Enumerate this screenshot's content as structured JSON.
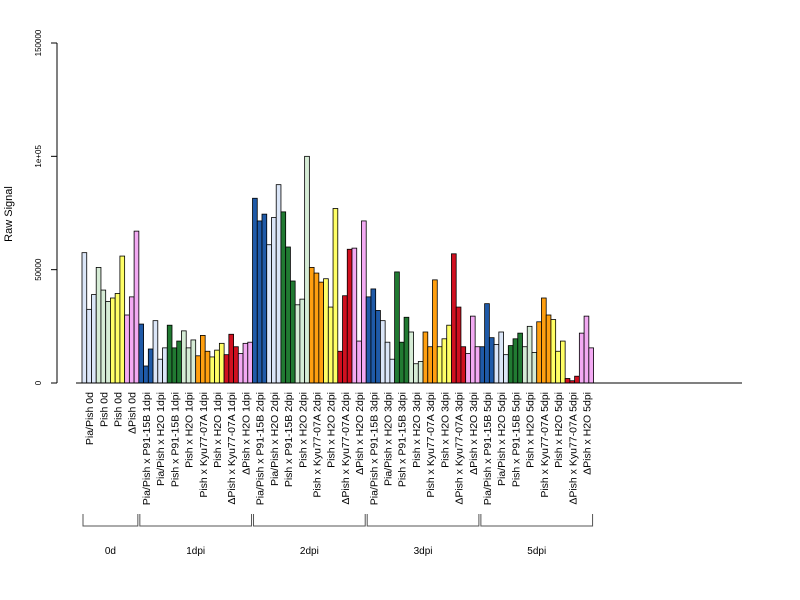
{
  "chart_data": {
    "type": "bar",
    "ylabel": "Raw Signal",
    "ylim": [
      0,
      150000
    ],
    "yticks": [
      0,
      50000,
      100000,
      150000
    ],
    "ytick_labels": [
      "0",
      "50000",
      "1e+05",
      "150000"
    ],
    "groups": [
      {
        "label": "Pia/Pish 0d",
        "values": [
          57500,
          32500,
          39000
        ],
        "colors": [
          "#dbe6f8",
          "#dbe6f8",
          "#dbe6f8"
        ]
      },
      {
        "label": "Pish 0d",
        "values": [
          51000,
          41000,
          36000
        ],
        "colors": [
          "#d6ecd6",
          "#d6ecd6",
          "#d6ecd6"
        ]
      },
      {
        "label": "Pish 0d",
        "values": [
          37500,
          39500,
          56000
        ],
        "colors": [
          "#ffff66",
          "#ffff66",
          "#ffff66"
        ]
      },
      {
        "label": "ΔPish 0d",
        "values": [
          30000,
          38000,
          67000
        ],
        "colors": [
          "#f3aaf3",
          "#f3aaf3",
          "#f3aaf3"
        ]
      },
      {
        "label": "Pia/Pish x P91-15B 1dpi",
        "values": [
          26000,
          7500,
          15000
        ],
        "colors": [
          "#1f5aa8",
          "#1f5aa8",
          "#1f5aa8"
        ]
      },
      {
        "label": "Pia/Pish x H2O 1dpi",
        "values": [
          27500,
          10500,
          15500
        ],
        "colors": [
          "#dbe6f8",
          "#dbe6f8",
          "#dbe6f8"
        ]
      },
      {
        "label": "Pish x P91-15B 1dpi",
        "values": [
          25500,
          15500,
          18500
        ],
        "colors": [
          "#217a32",
          "#217a32",
          "#217a32"
        ]
      },
      {
        "label": "Pish x H2O 1dpi",
        "values": [
          23000,
          15500,
          19000
        ],
        "colors": [
          "#d6ecd6",
          "#d6ecd6",
          "#d6ecd6"
        ]
      },
      {
        "label": "Pish x Kyu77-07A 1dpi",
        "values": [
          12000,
          21000,
          14000
        ],
        "colors": [
          "#ff9f10",
          "#ff9f10",
          "#ff9f10"
        ]
      },
      {
        "label": "Pish x H2O 1dpi",
        "values": [
          11500,
          14500,
          17500
        ],
        "colors": [
          "#ffff66",
          "#ffff66",
          "#ffff66"
        ]
      },
      {
        "label": "ΔPish x Kyu77-07A 1dpi",
        "values": [
          12500,
          21500,
          16000
        ],
        "colors": [
          "#d01020",
          "#d01020",
          "#d01020"
        ]
      },
      {
        "label": "ΔPish x H2O 1dpi",
        "values": [
          13000,
          17500,
          18000
        ],
        "colors": [
          "#f3aaf3",
          "#f3aaf3",
          "#f3aaf3"
        ]
      },
      {
        "label": "Pia/Pish x P91-15B 2dpi",
        "values": [
          81500,
          71500,
          74500
        ],
        "colors": [
          "#1f5aa8",
          "#1f5aa8",
          "#1f5aa8"
        ]
      },
      {
        "label": "Pia/Pish x H2O 2dpi",
        "values": [
          61000,
          73000,
          87500
        ],
        "colors": [
          "#dbe6f8",
          "#dbe6f8",
          "#dbe6f8"
        ]
      },
      {
        "label": "Pish x P91-15B 2dpi",
        "values": [
          75500,
          60000,
          45000
        ],
        "colors": [
          "#217a32",
          "#217a32",
          "#217a32"
        ]
      },
      {
        "label": "Pish x H2O 2dpi",
        "values": [
          34500,
          37000,
          100000
        ],
        "colors": [
          "#d6ecd6",
          "#d6ecd6",
          "#d6ecd6"
        ]
      },
      {
        "label": "Pish x Kyu77-07A 2dpi",
        "values": [
          51000,
          48500,
          44500
        ],
        "colors": [
          "#ff9f10",
          "#ff9f10",
          "#ff9f10"
        ]
      },
      {
        "label": "Pish x H2O 2dpi",
        "values": [
          46000,
          33500,
          77000
        ],
        "colors": [
          "#ffff66",
          "#ffff66",
          "#ffff66"
        ]
      },
      {
        "label": "ΔPish x Kyu77-07A 2dpi",
        "values": [
          14000,
          38500,
          59000
        ],
        "colors": [
          "#d01020",
          "#d01020",
          "#d01020"
        ]
      },
      {
        "label": "ΔPish x H2O 2dpi",
        "values": [
          59500,
          18500,
          71500
        ],
        "colors": [
          "#f3aaf3",
          "#f3aaf3",
          "#f3aaf3"
        ]
      },
      {
        "label": "Pia/Pish x P91-15B 3dpi",
        "values": [
          38000,
          41500,
          32000
        ],
        "colors": [
          "#1f5aa8",
          "#1f5aa8",
          "#1f5aa8"
        ]
      },
      {
        "label": "Pia/Pish x H2O 3dpi",
        "values": [
          27500,
          18000,
          10500
        ],
        "colors": [
          "#dbe6f8",
          "#dbe6f8",
          "#dbe6f8"
        ]
      },
      {
        "label": "Pish x P91-15B 3dpi",
        "values": [
          49000,
          18000,
          29000
        ],
        "colors": [
          "#217a32",
          "#217a32",
          "#217a32"
        ]
      },
      {
        "label": "Pish x H2O 3dpi",
        "values": [
          22500,
          8500,
          9500
        ],
        "colors": [
          "#d6ecd6",
          "#d6ecd6",
          "#d6ecd6"
        ]
      },
      {
        "label": "Pish x Kyu77-07A 3dpi",
        "values": [
          22500,
          16000,
          45500
        ],
        "colors": [
          "#ff9f10",
          "#ff9f10",
          "#ff9f10"
        ]
      },
      {
        "label": "Pish x H2O 3dpi",
        "values": [
          16000,
          19500,
          25500
        ],
        "colors": [
          "#ffff66",
          "#ffff66",
          "#ffff66"
        ]
      },
      {
        "label": "ΔPish x Kyu77-07A 3dpi",
        "values": [
          57000,
          33500,
          16000
        ],
        "colors": [
          "#d01020",
          "#d01020",
          "#d01020"
        ]
      },
      {
        "label": "ΔPish x H2O 3dpi",
        "values": [
          13000,
          29500,
          16000
        ],
        "colors": [
          "#f3aaf3",
          "#f3aaf3",
          "#f3aaf3"
        ]
      },
      {
        "label": "Pia/Pish x P91-15B 5dpi",
        "values": [
          16000,
          35000,
          20000
        ],
        "colors": [
          "#1f5aa8",
          "#1f5aa8",
          "#1f5aa8"
        ]
      },
      {
        "label": "Pia/Pish x H2O 5dpi",
        "values": [
          17000,
          22500,
          12500
        ],
        "colors": [
          "#dbe6f8",
          "#dbe6f8",
          "#dbe6f8"
        ]
      },
      {
        "label": "Pish x P91-15B 5dpi",
        "values": [
          16500,
          19500,
          22000
        ],
        "colors": [
          "#217a32",
          "#217a32",
          "#217a32"
        ]
      },
      {
        "label": "Pish x H2O 5dpi",
        "values": [
          16000,
          25000,
          13500
        ],
        "colors": [
          "#d6ecd6",
          "#d6ecd6",
          "#d6ecd6"
        ]
      },
      {
        "label": "Pish x Kyu77-07A 5dpi",
        "values": [
          27000,
          37500,
          30000
        ],
        "colors": [
          "#ff9f10",
          "#ff9f10",
          "#ff9f10"
        ]
      },
      {
        "label": "Pish x H2O 5dpi",
        "values": [
          28000,
          14000,
          18500
        ],
        "colors": [
          "#ffff66",
          "#ffff66",
          "#ffff66"
        ]
      },
      {
        "label": "ΔPish x Kyu77-07A 5dpi",
        "values": [
          2000,
          1000,
          3000
        ],
        "colors": [
          "#d01020",
          "#d01020",
          "#d01020"
        ]
      },
      {
        "label": "ΔPish x H2O 5dpi",
        "values": [
          22000,
          29500,
          15500
        ],
        "colors": [
          "#f3aaf3",
          "#f3aaf3",
          "#f3aaf3"
        ]
      }
    ],
    "timepoints": [
      {
        "label": "0d",
        "group_range": [
          0,
          3
        ]
      },
      {
        "label": "1dpi",
        "group_range": [
          4,
          11
        ]
      },
      {
        "label": "2dpi",
        "group_range": [
          12,
          19
        ]
      },
      {
        "label": "3dpi",
        "group_range": [
          20,
          27
        ]
      },
      {
        "label": "5dpi",
        "group_range": [
          28,
          35
        ]
      }
    ]
  }
}
